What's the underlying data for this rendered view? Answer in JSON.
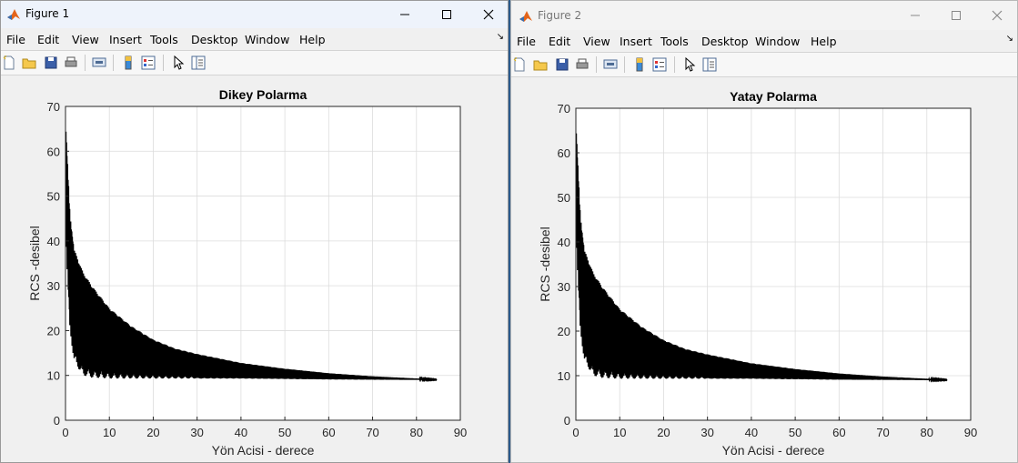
{
  "windows": [
    {
      "title": "Figure 1",
      "menu": [
        "File",
        "Edit",
        "View",
        "Insert",
        "Tools",
        "Desktop",
        "Window",
        "Help"
      ],
      "toolbar": [
        "new-figure-icon",
        "open-file-icon",
        "save-icon",
        "print-icon",
        "print-preview-icon",
        "colorbar-icon",
        "legend-icon",
        "edit-plot-icon",
        "property-inspector-icon"
      ],
      "chart_title": "Dikey Polarma",
      "xlabel": "Yön Acisi - derece",
      "ylabel": "RCS -desibel"
    },
    {
      "title": "Figure 2",
      "menu": [
        "File",
        "Edit",
        "View",
        "Insert",
        "Tools",
        "Desktop",
        "Window",
        "Help"
      ],
      "toolbar": [
        "new-figure-icon",
        "open-file-icon",
        "save-icon",
        "print-icon",
        "print-preview-icon",
        "colorbar-icon",
        "legend-icon",
        "edit-plot-icon",
        "property-inspector-icon"
      ],
      "chart_title": "Yatay Polarma",
      "xlabel": "Yön Acisi - derece",
      "ylabel": "RCS -desibel"
    }
  ],
  "colors": {
    "line": "#000000",
    "grid": "#dcdcdc",
    "axes_bg": "#ffffff",
    "matlab_orange": "#e4641a"
  },
  "chart_data": [
    {
      "type": "line",
      "title": "Dikey Polarma",
      "xlabel": "Yön Acisi - derece",
      "ylabel": "RCS -desibel",
      "xlim": [
        0,
        90
      ],
      "ylim": [
        0,
        70
      ],
      "xticks": [
        0,
        10,
        20,
        30,
        40,
        50,
        60,
        70,
        80,
        90
      ],
      "yticks": [
        0,
        10,
        20,
        30,
        40,
        50,
        60,
        70
      ],
      "grid": true,
      "x_range": [
        0.1,
        84.6
      ],
      "envelope": {
        "upper": [
          [
            0.1,
            65
          ],
          [
            1,
            46
          ],
          [
            2,
            38
          ],
          [
            4,
            33
          ],
          [
            6,
            30
          ],
          [
            10,
            25
          ],
          [
            15,
            21
          ],
          [
            20,
            18
          ],
          [
            25,
            16
          ],
          [
            30,
            14.8
          ],
          [
            40,
            12.8
          ],
          [
            50,
            11.5
          ],
          [
            60,
            10.5
          ],
          [
            70,
            9.8
          ],
          [
            80,
            9.3
          ],
          [
            84.6,
            9.1
          ]
        ],
        "lower": [
          [
            0.1,
            40
          ],
          [
            1,
            20
          ],
          [
            2,
            13
          ],
          [
            4,
            10
          ],
          [
            6,
            9.5
          ],
          [
            10,
            9.3
          ],
          [
            20,
            9.3
          ],
          [
            40,
            9.3
          ],
          [
            60,
            9.1
          ],
          [
            84.6,
            9
          ]
        ]
      },
      "series": [
        {
          "values": "dense oscillation between envelope bounds"
        }
      ]
    },
    {
      "type": "line",
      "title": "Yatay Polarma",
      "xlabel": "Yön Acisi - derece",
      "ylabel": "RCS -desibel",
      "xlim": [
        0,
        90
      ],
      "ylim": [
        0,
        70
      ],
      "xticks": [
        0,
        10,
        20,
        30,
        40,
        50,
        60,
        70,
        80,
        90
      ],
      "yticks": [
        0,
        10,
        20,
        30,
        40,
        50,
        60,
        70
      ],
      "grid": true,
      "x_range": [
        0.1,
        84.6
      ],
      "envelope": {
        "upper": [
          [
            0.1,
            65
          ],
          [
            1,
            46
          ],
          [
            2,
            38
          ],
          [
            4,
            33
          ],
          [
            6,
            30
          ],
          [
            10,
            25
          ],
          [
            15,
            21
          ],
          [
            20,
            18
          ],
          [
            25,
            16
          ],
          [
            30,
            14.8
          ],
          [
            40,
            12.8
          ],
          [
            50,
            11.5
          ],
          [
            60,
            10.5
          ],
          [
            70,
            9.8
          ],
          [
            80,
            9.3
          ],
          [
            84.6,
            9.1
          ]
        ],
        "lower": [
          [
            0.1,
            40
          ],
          [
            1,
            20
          ],
          [
            2,
            13
          ],
          [
            4,
            10
          ],
          [
            6,
            9.5
          ],
          [
            10,
            9.3
          ],
          [
            20,
            9.3
          ],
          [
            40,
            9.3
          ],
          [
            60,
            9.1
          ],
          [
            84.6,
            9
          ]
        ]
      },
      "series": [
        {
          "values": "dense oscillation between envelope bounds"
        }
      ]
    }
  ]
}
